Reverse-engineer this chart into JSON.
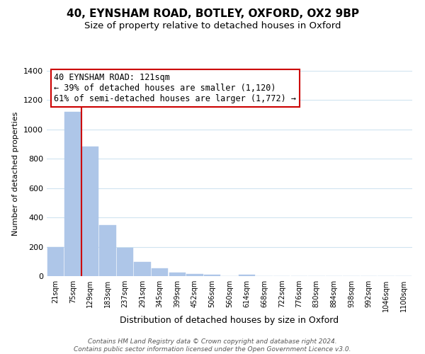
{
  "title": "40, EYNSHAM ROAD, BOTLEY, OXFORD, OX2 9BP",
  "subtitle": "Size of property relative to detached houses in Oxford",
  "xlabel": "Distribution of detached houses by size in Oxford",
  "ylabel": "Number of detached properties",
  "bar_labels": [
    "21sqm",
    "75sqm",
    "129sqm",
    "183sqm",
    "237sqm",
    "291sqm",
    "345sqm",
    "399sqm",
    "452sqm",
    "506sqm",
    "560sqm",
    "614sqm",
    "668sqm",
    "722sqm",
    "776sqm",
    "830sqm",
    "884sqm",
    "938sqm",
    "992sqm",
    "1046sqm",
    "1100sqm"
  ],
  "bar_values": [
    200,
    1120,
    885,
    350,
    195,
    98,
    55,
    25,
    15,
    10,
    0,
    12,
    0,
    0,
    0,
    0,
    0,
    0,
    0,
    0,
    0
  ],
  "bar_color": "#aec6e8",
  "bar_edge_color": "#aec6e8",
  "property_line_color": "#cc0000",
  "annotation_line1": "40 EYNSHAM ROAD: 121sqm",
  "annotation_line2": "← 39% of detached houses are smaller (1,120)",
  "annotation_line3": "61% of semi-detached houses are larger (1,772) →",
  "annotation_box_facecolor": "#ffffff",
  "annotation_box_edgecolor": "#cc0000",
  "ylim": [
    0,
    1400
  ],
  "yticks": [
    0,
    200,
    400,
    600,
    800,
    1000,
    1200,
    1400
  ],
  "grid_color": "#d0e4f0",
  "title_fontsize": 11,
  "subtitle_fontsize": 9.5,
  "xlabel_fontsize": 9,
  "ylabel_fontsize": 8,
  "xtick_fontsize": 7,
  "ytick_fontsize": 8,
  "annotation_fontsize": 8.5,
  "footer_line1": "Contains HM Land Registry data © Crown copyright and database right 2024.",
  "footer_line2": "Contains public sector information licensed under the Open Government Licence v3.0.",
  "footer_fontsize": 6.5
}
